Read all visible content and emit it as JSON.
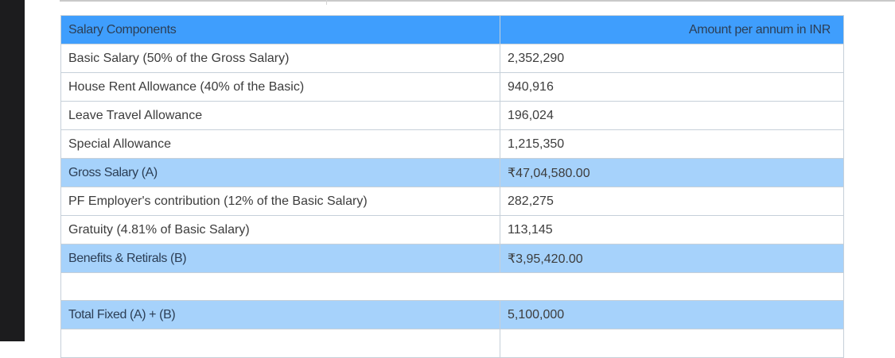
{
  "table": {
    "headers": {
      "component": "Salary Components",
      "amount": "Amount per annum in INR"
    },
    "rows": [
      {
        "label": "Basic Salary (50% of the Gross Salary)",
        "value": "2,352,290",
        "type": "item"
      },
      {
        "label": "House Rent Allowance (40% of the Basic)",
        "value": "940,916",
        "type": "item"
      },
      {
        "label": "Leave Travel Allowance",
        "value": "196,024",
        "type": "item"
      },
      {
        "label": "Special Allowance",
        "value": "1,215,350",
        "type": "item"
      },
      {
        "label": "Gross Salary (A)",
        "value": "₹47,04,580.00",
        "type": "subtotal"
      },
      {
        "label": "PF Employer's contribution (12% of the Basic Salary)",
        "value": "282,275",
        "type": "item"
      },
      {
        "label": "Gratuity (4.81% of Basic Salary)",
        "value": "113,145",
        "type": "item"
      },
      {
        "label": "Benefits & Retirals (B)",
        "value": "₹3,95,420.00",
        "type": "subtotal"
      },
      {
        "label": "",
        "value": "",
        "type": "spacer"
      },
      {
        "label": "Total Fixed (A) + (B)",
        "value": "5,100,000",
        "type": "subtotal"
      },
      {
        "label": "",
        "value": "",
        "type": "item"
      }
    ]
  },
  "colors": {
    "header_bg": "#3f9efd",
    "subtotal_bg": "#a6d2fb",
    "border": "#c6d0d9",
    "side_strip": "#1c1c1e"
  }
}
